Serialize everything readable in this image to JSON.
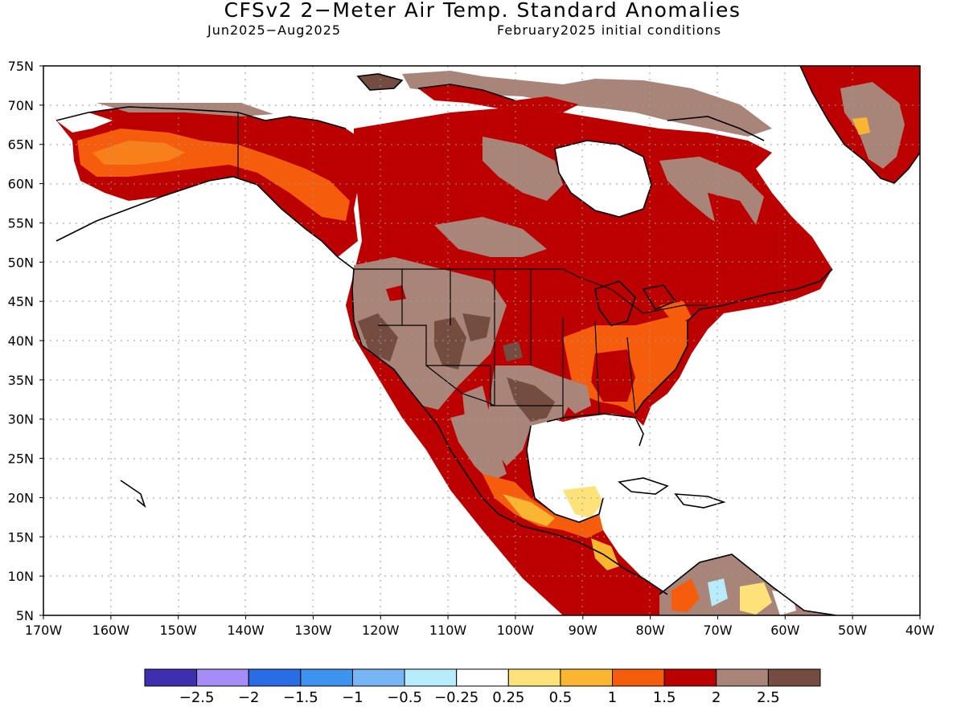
{
  "title": "CFSv2 2−Meter Air Temp. Standard Anomalies",
  "subtitle_left": "Jun2025−Aug2025",
  "subtitle_right": "February2025 initial conditions",
  "map": {
    "lon_range": [
      -170,
      -40
    ],
    "lat_range": [
      5,
      75
    ],
    "lat_ticks": [
      "75N",
      "70N",
      "65N",
      "60N",
      "55N",
      "50N",
      "45N",
      "40N",
      "35N",
      "30N",
      "25N",
      "20N",
      "15N",
      "10N",
      "5N"
    ],
    "lon_ticks": [
      "170W",
      "160W",
      "150W",
      "140W",
      "130W",
      "120W",
      "110W",
      "100W",
      "90W",
      "80W",
      "70W",
      "60W",
      "50W",
      "40W"
    ],
    "grid": "dotted"
  },
  "colorbar": {
    "colors": [
      "#3e2fae",
      "#a58cf7",
      "#2a6be6",
      "#3e93ef",
      "#77b5f5",
      "#b6ecfb",
      "#ffffff",
      "#fde27a",
      "#fbb631",
      "#f55d0c",
      "#bc0000",
      "#a98579",
      "#744d40"
    ],
    "labels": [
      "−2.5",
      "−2",
      "−1.5",
      "−1",
      "−0.5",
      "−0.25",
      "0.25",
      "0.5",
      "1",
      "1.5",
      "2",
      "2.5"
    ]
  }
}
